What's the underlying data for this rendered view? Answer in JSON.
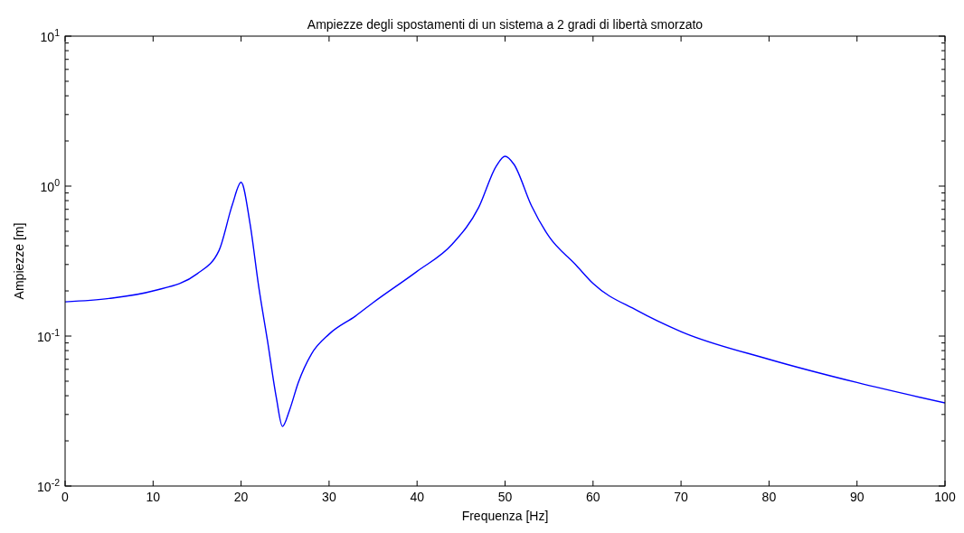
{
  "chart_data": {
    "type": "line",
    "title": "Ampiezze degli spostamenti di un sistema a 2 gradi di libertà smorzato",
    "xlabel": "Frequenza [Hz]",
    "ylabel": "Ampiezze [m]",
    "log": "y",
    "marker": "none",
    "line_style": "solid",
    "xlim": [
      0,
      100
    ],
    "xticks": [
      0,
      10,
      20,
      30,
      40,
      50,
      60,
      70,
      80,
      90,
      100
    ],
    "ylim": [
      0.01,
      10
    ],
    "yticks": [
      {
        "value": 0.01,
        "label": "10$^{-2}$"
      },
      {
        "value": 0.1,
        "label": "10$^{-1}$"
      },
      {
        "value": 1,
        "label": "10$^{0}$"
      },
      {
        "value": 10,
        "label": "10$^{1}$"
      }
    ],
    "series": [
      {
        "color": "#0000ff",
        "x": [
          0,
          5,
          10,
          15,
          17.5,
          19,
          20,
          21,
          22,
          23,
          24,
          24.7,
          25.5,
          26.5,
          28,
          30,
          33,
          35,
          40,
          44,
          47,
          49,
          50,
          51,
          53,
          55,
          58,
          60,
          65,
          70,
          80,
          90,
          100
        ],
        "values": [
          0.169,
          0.178,
          0.2,
          0.26,
          0.373,
          0.75,
          1.06,
          0.57,
          0.214,
          0.093,
          0.039,
          0.025,
          0.032,
          0.049,
          0.076,
          0.103,
          0.136,
          0.167,
          0.27,
          0.41,
          0.72,
          1.36,
          1.58,
          1.4,
          0.74,
          0.46,
          0.3,
          0.224,
          0.148,
          0.107,
          0.07,
          0.049,
          0.0358
        ]
      }
    ]
  }
}
